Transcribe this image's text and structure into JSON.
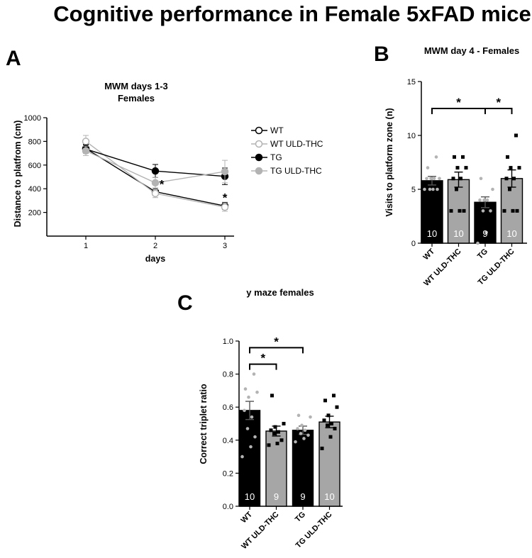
{
  "title": "Cognitive performance in Female 5xFAD mice",
  "colors": {
    "black": "#000000",
    "gray": "#a6a6a6",
    "light_gray": "#b3b3b3",
    "dark_gray": "#555555",
    "n_label": "#ffffff"
  },
  "chart_data": [
    {
      "panel": "A",
      "type": "line",
      "title_lines": [
        "MWM days 1-3",
        "Females"
      ],
      "xlabel": "days",
      "ylabel": "Distance to platfrom  (cm)",
      "x": [
        1,
        2,
        3
      ],
      "x_ticks": [
        "1",
        "2",
        "3"
      ],
      "ylim": [
        0,
        1000
      ],
      "y_ticks": [
        "200",
        "400",
        "600",
        "800",
        "1000"
      ],
      "legend_position": "right",
      "series": [
        {
          "name": "WT",
          "style": "open-black",
          "values": [
            740,
            375,
            255
          ],
          "err": [
            35,
            30,
            30
          ]
        },
        {
          "name": "WT ULD-THC",
          "style": "open-gray",
          "values": [
            800,
            360,
            245
          ],
          "err": [
            50,
            35,
            35
          ]
        },
        {
          "name": "TG",
          "style": "filled-black",
          "values": [
            735,
            550,
            505
          ],
          "err": [
            35,
            55,
            70
          ]
        },
        {
          "name": "TG ULD-THC",
          "style": "filled-gray",
          "values": [
            720,
            450,
            545
          ],
          "err": [
            40,
            45,
            95
          ]
        }
      ],
      "annotations": [
        {
          "x": 2,
          "y": 440,
          "text": "*"
        },
        {
          "x": 3,
          "y": 325,
          "text": "*"
        }
      ]
    },
    {
      "panel": "B",
      "type": "bar",
      "title": "MWM day 4 - Females",
      "xlabel": "",
      "ylabel": "Visits to platform zone (n)",
      "categories": [
        "WT",
        "WT ULD-THC",
        "TG",
        "TG ULD-THC"
      ],
      "values": [
        5.8,
        5.9,
        3.8,
        6.0
      ],
      "errors": [
        0.4,
        0.7,
        0.5,
        0.8
      ],
      "n_labels": [
        "10",
        "10",
        "9",
        "10"
      ],
      "bar_fill": [
        "#000000",
        "#a6a6a6",
        "#000000",
        "#a6a6a6"
      ],
      "ylim": [
        0,
        15
      ],
      "y_ticks": [
        "0",
        "5",
        "10",
        "15"
      ],
      "points": [
        [
          5,
          5,
          5,
          5,
          6,
          6,
          6,
          6,
          7,
          8
        ],
        [
          3,
          3,
          3,
          5,
          6,
          6,
          7,
          7,
          8,
          8
        ],
        [
          0,
          1,
          3,
          3,
          4,
          4,
          4,
          5,
          6
        ],
        [
          3,
          3,
          3,
          5,
          6,
          6,
          7,
          7,
          8,
          10
        ]
      ],
      "point_style": [
        "gray-dot",
        "black-square",
        "gray-dot",
        "black-square"
      ],
      "significance": [
        {
          "from": 0,
          "to": 2,
          "y": 12.5,
          "text": "*"
        },
        {
          "from": 2,
          "to": 3,
          "y": 12.5,
          "text": "*"
        }
      ]
    },
    {
      "panel": "C",
      "type": "bar",
      "title": "y maze females",
      "xlabel": "",
      "ylabel": "Correct triplet ratio",
      "categories": [
        "WT",
        "WT ULD-THC",
        "TG",
        "TG ULD-THC"
      ],
      "values": [
        0.58,
        0.455,
        0.46,
        0.51
      ],
      "errors": [
        0.055,
        0.03,
        0.025,
        0.035
      ],
      "n_labels": [
        "10",
        "9",
        "9",
        "10"
      ],
      "bar_fill": [
        "#000000",
        "#a6a6a6",
        "#000000",
        "#a6a6a6"
      ],
      "ylim": [
        0,
        1
      ],
      "y_ticks": [
        "0.0",
        "0.2",
        "0.4",
        "0.6",
        "0.8",
        "1.0"
      ],
      "points": [
        [
          0.3,
          0.36,
          0.42,
          0.47,
          0.54,
          0.58,
          0.66,
          0.69,
          0.71,
          0.8
        ],
        [
          0.37,
          0.38,
          0.4,
          0.44,
          0.45,
          0.46,
          0.48,
          0.5,
          0.67
        ],
        [
          0.39,
          0.41,
          0.43,
          0.44,
          0.46,
          0.47,
          0.49,
          0.54,
          0.55
        ],
        [
          0.35,
          0.42,
          0.47,
          0.49,
          0.5,
          0.52,
          0.55,
          0.6,
          0.64,
          0.67
        ]
      ],
      "point_style": [
        "gray-dot",
        "black-square",
        "gray-dot",
        "black-square"
      ],
      "significance": [
        {
          "from": 0,
          "to": 1,
          "y": 0.86,
          "text": "*"
        },
        {
          "from": 0,
          "to": 2,
          "y": 0.96,
          "text": "*"
        }
      ]
    }
  ]
}
